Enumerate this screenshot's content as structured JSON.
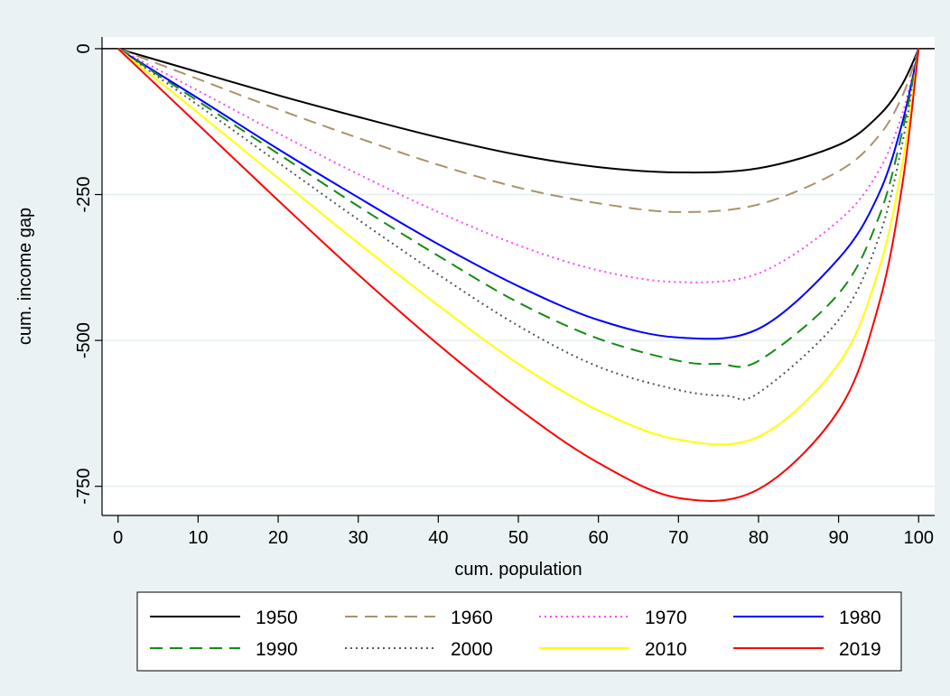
{
  "chart_data": {
    "type": "line",
    "xlabel": "cum. population",
    "ylabel": "cum. income gap",
    "xlim": [
      -2,
      102
    ],
    "ylim": [
      -800,
      20
    ],
    "x_ticks": [
      0,
      10,
      20,
      30,
      40,
      50,
      60,
      70,
      80,
      90,
      100
    ],
    "y_ticks": [
      0,
      -250,
      -500,
      -750
    ],
    "grid": true,
    "legend_position": "bottom",
    "reference_line_y": 0,
    "series": [
      {
        "name": "1950",
        "color": "#000000",
        "style": "solid",
        "x": [
          0,
          10,
          20,
          30,
          40,
          50,
          60,
          70,
          80,
          90,
          95,
          98,
          100
        ],
        "y": [
          0,
          -40,
          -80,
          -117,
          -152,
          -182,
          -203,
          -212,
          -205,
          -165,
          -115,
          -60,
          0
        ]
      },
      {
        "name": "1960",
        "color": "#a8946a",
        "style": "dashed",
        "x": [
          0,
          10,
          20,
          30,
          40,
          50,
          60,
          70,
          80,
          90,
          95,
          98,
          100
        ],
        "y": [
          0,
          -52,
          -104,
          -153,
          -199,
          -238,
          -265,
          -280,
          -267,
          -210,
          -150,
          -80,
          0
        ]
      },
      {
        "name": "1970",
        "color": "#ff44ff",
        "style": "dotted",
        "x": [
          0,
          10,
          20,
          30,
          40,
          50,
          60,
          70,
          80,
          90,
          95,
          98,
          100
        ],
        "y": [
          0,
          -72,
          -145,
          -215,
          -280,
          -337,
          -380,
          -400,
          -385,
          -295,
          -210,
          -110,
          0
        ]
      },
      {
        "name": "1980",
        "color": "#0000ff",
        "style": "solid",
        "x": [
          0,
          10,
          20,
          30,
          40,
          50,
          60,
          70,
          80,
          90,
          95,
          98,
          100
        ],
        "y": [
          0,
          -85,
          -172,
          -255,
          -335,
          -407,
          -465,
          -495,
          -480,
          -360,
          -250,
          -125,
          0
        ]
      },
      {
        "name": "1990",
        "color": "#158c15",
        "style": "dashed",
        "x": [
          0,
          10,
          20,
          30,
          40,
          50,
          60,
          70,
          75,
          80,
          90,
          95,
          98,
          100
        ],
        "y": [
          0,
          -90,
          -180,
          -270,
          -355,
          -435,
          -497,
          -535,
          -540,
          -535,
          -420,
          -290,
          -140,
          0
        ]
      },
      {
        "name": "2000",
        "color": "#555555",
        "style": "dotted",
        "x": [
          0,
          10,
          20,
          30,
          40,
          50,
          60,
          70,
          76,
          80,
          90,
          95,
          98,
          100
        ],
        "y": [
          0,
          -97,
          -195,
          -293,
          -387,
          -475,
          -545,
          -585,
          -595,
          -590,
          -465,
          -325,
          -160,
          0
        ]
      },
      {
        "name": "2010",
        "color": "#ffff00",
        "style": "solid",
        "x": [
          0,
          10,
          20,
          30,
          40,
          50,
          60,
          70,
          80,
          90,
          95,
          98,
          100
        ],
        "y": [
          0,
          -110,
          -222,
          -333,
          -440,
          -540,
          -620,
          -670,
          -665,
          -540,
          -380,
          -195,
          0
        ]
      },
      {
        "name": "2019",
        "color": "#ff0000",
        "style": "solid",
        "x": [
          0,
          10,
          20,
          30,
          40,
          50,
          60,
          70,
          80,
          90,
          95,
          98,
          100
        ],
        "y": [
          0,
          -130,
          -260,
          -387,
          -507,
          -617,
          -710,
          -770,
          -755,
          -620,
          -440,
          -230,
          0
        ]
      }
    ]
  }
}
